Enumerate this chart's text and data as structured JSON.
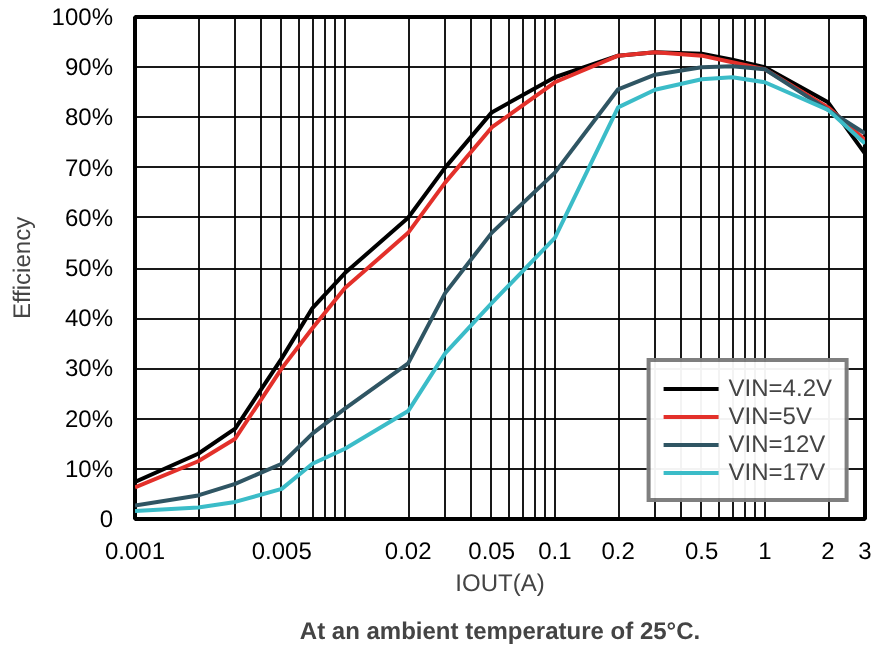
{
  "chart_data": {
    "type": "line",
    "xlabel": "IOUT(A)",
    "ylabel": "Efficiency",
    "log": "x",
    "annotations": [
      "At an ambient temperature of 25°C."
    ],
    "x": [
      0.001,
      0.002,
      0.003,
      0.005,
      0.007,
      0.01,
      0.02,
      0.03,
      0.05,
      0.1,
      0.2,
      0.3,
      0.5,
      0.7,
      1,
      2,
      3
    ],
    "series": [
      {
        "name": "VIN=4.2V",
        "color": "#000000",
        "values": [
          7.4,
          13,
          18,
          32,
          42,
          49,
          60,
          70,
          81,
          88,
          92.3,
          93,
          92.7,
          91.5,
          90,
          83,
          72.8
        ]
      },
      {
        "name": "VIN=5V",
        "color": "#e3302a",
        "values": [
          6.3,
          11.5,
          16,
          30,
          38,
          46,
          57,
          67,
          78,
          87,
          92.3,
          93,
          92.3,
          91,
          89.6,
          82,
          75.5
        ]
      },
      {
        "name": "VIN=12V",
        "color": "#2f5563",
        "values": [
          2.7,
          4.7,
          7,
          11,
          17,
          22,
          31,
          45,
          57,
          69,
          85.6,
          88.5,
          90,
          90.2,
          89.6,
          81.5,
          76.8
        ]
      },
      {
        "name": "VIN=17V",
        "color": "#3bbcc8",
        "values": [
          1.6,
          2.3,
          3.4,
          6,
          11,
          14,
          21.5,
          33,
          43,
          56,
          82,
          85.5,
          87.6,
          88,
          87,
          81.5,
          74.8
        ]
      }
    ],
    "xlim": [
      0.001,
      3
    ],
    "xticks": [
      0.001,
      {
        "value": 0.002,
        "label": null
      },
      {
        "value": 0.003,
        "label": null
      },
      {
        "value": 0.004,
        "label": null
      },
      0.005,
      {
        "value": 0.006,
        "label": null
      },
      {
        "value": 0.007,
        "label": null
      },
      {
        "value": 0.008,
        "label": null
      },
      {
        "value": 0.009,
        "label": null
      },
      {
        "value": 0.01,
        "label": null
      },
      0.02,
      {
        "value": 0.03,
        "label": null
      },
      {
        "value": 0.04,
        "label": null
      },
      0.05,
      {
        "value": 0.06,
        "label": null
      },
      {
        "value": 0.07,
        "label": null
      },
      {
        "value": 0.08,
        "label": null
      },
      {
        "value": 0.09,
        "label": null
      },
      0.1,
      0.2,
      {
        "value": 0.3,
        "label": null
      },
      {
        "value": 0.4,
        "label": null
      },
      0.5,
      {
        "value": 0.6,
        "label": null
      },
      {
        "value": 0.7,
        "label": null
      },
      {
        "value": 0.8,
        "label": null
      },
      {
        "value": 0.9,
        "label": null
      },
      1,
      2,
      3
    ],
    "ylim": [
      0,
      100
    ],
    "yticks": [
      0,
      {
        "value": 10,
        "label": "10%"
      },
      {
        "value": 20,
        "label": "20%"
      },
      {
        "value": 30,
        "label": "30%"
      },
      {
        "value": 40,
        "label": "40%"
      },
      {
        "value": 50,
        "label": "50%"
      },
      {
        "value": 60,
        "label": "60%"
      },
      {
        "value": 70,
        "label": "70%"
      },
      {
        "value": 80,
        "label": "80%"
      },
      {
        "value": 90,
        "label": "90%"
      },
      {
        "value": 100,
        "label": "100%"
      }
    ],
    "grid": true,
    "legend": "bottom right",
    "line_style": "solid",
    "marker": "none"
  }
}
